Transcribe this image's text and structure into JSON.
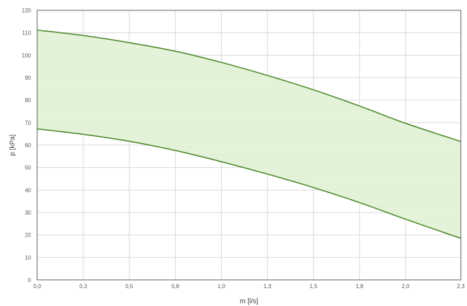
{
  "chart_data": {
    "type": "area",
    "xlabel": "m [l/s]",
    "ylabel": "p [kPa]",
    "xlim": [
      0,
      2.3
    ],
    "ylim": [
      0,
      120
    ],
    "x_ticks": [
      0,
      0.25,
      0.5,
      0.75,
      1.0,
      1.25,
      1.5,
      1.75,
      2.0,
      2.3
    ],
    "x_tick_labels": [
      "0,0",
      "0,3",
      "0,5",
      "0,8",
      "1,0",
      "1,3",
      "1,5",
      "1,8",
      "2,0",
      "2,3"
    ],
    "y_ticks": [
      0,
      10,
      20,
      30,
      40,
      50,
      60,
      70,
      80,
      90,
      100,
      110,
      120
    ],
    "y_tick_labels": [
      "0",
      "10",
      "20",
      "30",
      "40",
      "50",
      "60",
      "70",
      "80",
      "90",
      "100",
      "110",
      "120"
    ],
    "grid": true,
    "legend": "none",
    "series": [
      {
        "x": [
          0,
          0.25,
          0.5,
          0.75,
          1.0,
          1.25,
          1.5,
          1.75,
          2.0,
          2.3
        ],
        "values": [
          111.2,
          108.8,
          105.6,
          101.8,
          96.8,
          91.0,
          84.6,
          77.4,
          69.7,
          61.6
        ]
      },
      {
        "x": [
          0,
          0.25,
          0.5,
          0.75,
          1.0,
          1.25,
          1.5,
          1.75,
          2.0,
          2.3
        ],
        "values": [
          67.2,
          64.8,
          61.7,
          57.6,
          52.6,
          47.1,
          41.1,
          34.4,
          27.0,
          18.5
        ]
      }
    ],
    "colors": {
      "line": "#4e8a2e",
      "fill": "#ddefcf",
      "grid": "#d9d9d9",
      "frame": "#595959"
    }
  }
}
